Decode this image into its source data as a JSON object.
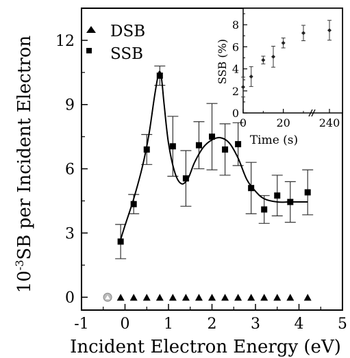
{
  "chart_data": [
    {
      "type": "scatter",
      "xlabel": "Incident Electron Energy (eV)",
      "ylabel_prefix": "10",
      "ylabel_exp": "-3",
      "ylabel_rest": "SB per Incident Electron",
      "xlim": [
        -1,
        5
      ],
      "ylim": [
        -0.6,
        13.5
      ],
      "xticks": [
        "-1",
        "0",
        "1",
        "2",
        "3",
        "4",
        "5"
      ],
      "yticks": [
        "0",
        "3",
        "6",
        "9",
        "12"
      ],
      "legend": [
        "DSB",
        "SSB"
      ],
      "legend_position": "top-left",
      "series": [
        {
          "name": "DSB",
          "marker": "triangle",
          "x": [
            -0.4,
            -0.1,
            0.2,
            0.5,
            0.8,
            1.1,
            1.4,
            1.7,
            2.0,
            2.3,
            2.6,
            2.9,
            3.2,
            3.5,
            3.8,
            4.2
          ],
          "y": [
            0,
            0,
            0,
            0,
            0,
            0,
            0,
            0,
            0,
            0,
            0,
            0,
            0,
            0,
            0,
            0
          ]
        },
        {
          "name": "SSB",
          "marker": "square",
          "x": [
            -0.1,
            0.2,
            0.5,
            0.8,
            1.1,
            1.4,
            1.7,
            2.0,
            2.3,
            2.6,
            2.9,
            3.2,
            3.5,
            3.8,
            4.2
          ],
          "y": [
            2.6,
            4.35,
            6.9,
            10.35,
            7.05,
            5.55,
            7.1,
            7.5,
            6.9,
            7.15,
            5.1,
            4.1,
            4.75,
            4.45,
            4.9
          ],
          "err": [
            0.8,
            0.45,
            0.7,
            0.45,
            1.4,
            1.3,
            1.1,
            1.55,
            1.2,
            1.0,
            1.2,
            0.65,
            0.95,
            0.95,
            1.05
          ]
        },
        {
          "name": "",
          "marker": "line",
          "x": [
            -0.1,
            0.0,
            0.2,
            0.4,
            0.55,
            0.68,
            0.78,
            0.84,
            0.9,
            1.0,
            1.15,
            1.3,
            1.45,
            1.6,
            1.8,
            2.0,
            2.2,
            2.4,
            2.6,
            2.8,
            3.0,
            3.2,
            3.5,
            3.8,
            4.2
          ],
          "y": [
            2.7,
            3.35,
            4.6,
            6.1,
            7.6,
            9.4,
            10.5,
            10.2,
            9.0,
            7.2,
            5.8,
            5.3,
            5.55,
            6.3,
            7.0,
            7.35,
            7.45,
            7.2,
            6.5,
            5.5,
            4.95,
            4.6,
            4.45,
            4.45,
            4.45
          ]
        }
      ]
    },
    {
      "type": "scatter",
      "xlabel": "Time (s)",
      "ylabel": "SSB (%)",
      "xticks": [
        "0",
        "20",
        "240"
      ],
      "yticks": [
        "0",
        "2",
        "4",
        "6",
        "8"
      ],
      "ylim": [
        0,
        9.5
      ],
      "axis_break": true,
      "series": [
        {
          "name": "",
          "x": [
            0,
            4,
            10,
            15,
            20,
            30,
            240
          ],
          "y": [
            2.35,
            3.3,
            4.8,
            5.1,
            6.35,
            7.25,
            7.5
          ],
          "err": [
            0.9,
            0.9,
            0.35,
            0.95,
            0.45,
            0.7,
            0.9
          ]
        }
      ]
    }
  ]
}
